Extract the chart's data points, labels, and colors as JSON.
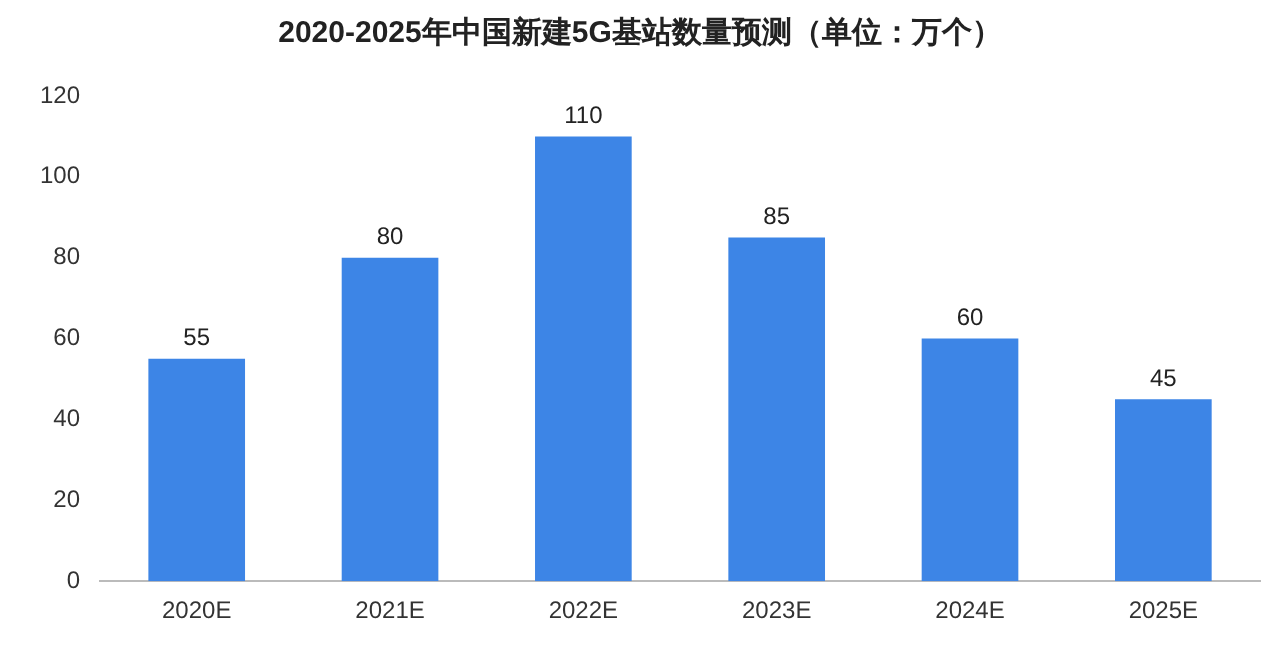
{
  "chart_data": {
    "type": "bar",
    "title": "2020-2025年中国新建5G基站数量预测（单位：万个）",
    "categories": [
      "2020E",
      "2021E",
      "2022E",
      "2023E",
      "2024E",
      "2025E"
    ],
    "values": [
      55,
      80,
      110,
      85,
      60,
      45
    ],
    "color": "#3d85e6",
    "ylim": [
      0,
      120
    ],
    "yticks": [
      0,
      20,
      40,
      60,
      80,
      100,
      120
    ],
    "grid": false,
    "data_labels": true
  }
}
